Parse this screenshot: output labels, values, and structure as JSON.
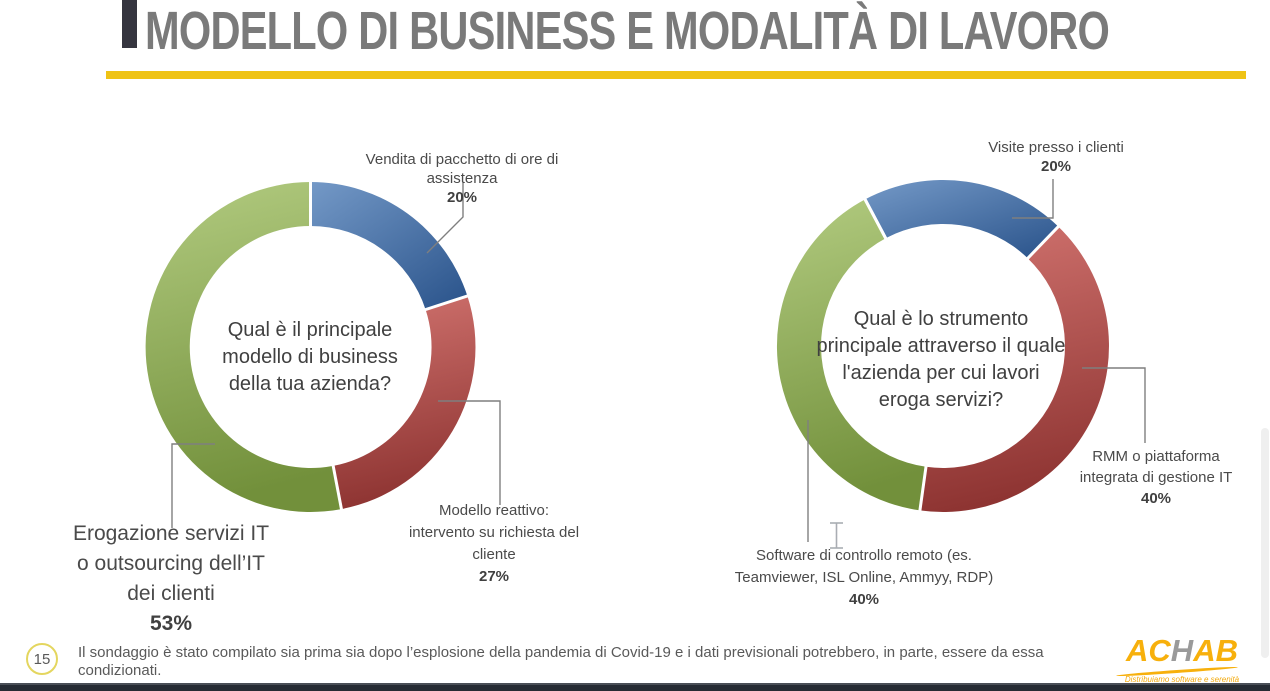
{
  "title": "MODELLO DI BUSINESS E MODALITÀ DI LAVORO",
  "accent_colors": {
    "title_gray": "#7a7a7a",
    "underline_yellow": "#efc315",
    "blue": "#4F81BD",
    "red": "#C0504D",
    "green": "#9BBB59",
    "leader_line_gray": "#7f7f7f"
  },
  "cursor": {
    "type": "text-ibeam"
  },
  "chart_data": [
    {
      "type": "pie",
      "subtype": "donut",
      "question": "Qual è il principale modello di business della tua azienda?",
      "question_lines": [
        "Qual è il principale",
        "modello di business",
        "della tua azienda?"
      ],
      "start_angle_deg": 0,
      "legend": "none",
      "slices": [
        {
          "label": "Vendita di pacchetto di ore di assistenza",
          "value_pct": 20,
          "color": "#4F81BD",
          "color_light": "#7499C7",
          "color_dark": "#2E578E",
          "lines": [
            "Vendita di pacchetto di ore di",
            "assistenza"
          ],
          "pct_text": "20%"
        },
        {
          "label": "Modello reattivo: intervento su richiesta del cliente",
          "value_pct": 27,
          "color": "#C0504D",
          "color_light": "#D1736F",
          "color_dark": "#8E3432",
          "lines": [
            "Modello reattivo:",
            "intervento su richiesta del",
            "cliente"
          ],
          "pct_text": "27%"
        },
        {
          "label": "Erogazione servizi IT o outsourcing dell’IT dei clienti",
          "value_pct": 53,
          "color": "#9BBB59",
          "color_light": "#B2CB80",
          "color_dark": "#72903B",
          "lines": [
            "Erogazione servizi IT",
            "o outsourcing dell’IT",
            "dei clienti"
          ],
          "pct_text": "53%"
        }
      ]
    },
    {
      "type": "pie",
      "subtype": "donut",
      "question": "Qual è lo strumento principale attraverso il quale l'azienda per cui lavori eroga servizi?",
      "question_lines": [
        "Qual è lo strumento",
        "principale attraverso il quale",
        "l'azienda per cui lavori",
        "eroga servizi?"
      ],
      "start_angle_deg": -28,
      "legend": "none",
      "slices": [
        {
          "label": "Visite presso i clienti",
          "value_pct": 20,
          "color": "#4F81BD",
          "color_light": "#7499C7",
          "color_dark": "#2E578E",
          "lines": [
            "Visite presso i clienti"
          ],
          "pct_text": "20%"
        },
        {
          "label": "RMM o piattaforma integrata di gestione IT",
          "value_pct": 40,
          "color": "#C0504D",
          "color_light": "#D1736F",
          "color_dark": "#8E3432",
          "lines": [
            "RMM o piattaforma",
            "integrata di gestione IT"
          ],
          "pct_text": "40%"
        },
        {
          "label": "Software di controllo remoto (es. Teamviewer, ISL Online, Ammyy, RDP)",
          "value_pct": 40,
          "color": "#9BBB59",
          "color_light": "#B2CB80",
          "color_dark": "#72903B",
          "lines": [
            "Software di controllo remoto (es.",
            "Teamviewer, ISL Online, Ammyy, RDP)"
          ],
          "pct_text": "40%"
        }
      ]
    }
  ],
  "footer": {
    "slide_number": "15",
    "note": "Il sondaggio è stato compilato sia prima sia dopo l’esplosione della pandemia di Covid-19 e i dati previsionali potrebbero, in parte, essere da essa condizionati."
  },
  "logo": {
    "name": "ACHAB",
    "part1": "AC",
    "part2": "H",
    "part3": "AB",
    "tagline": "Distribuiamo software e serenità",
    "yellow": "#f7b00c",
    "gray": "#9a9a9a"
  }
}
